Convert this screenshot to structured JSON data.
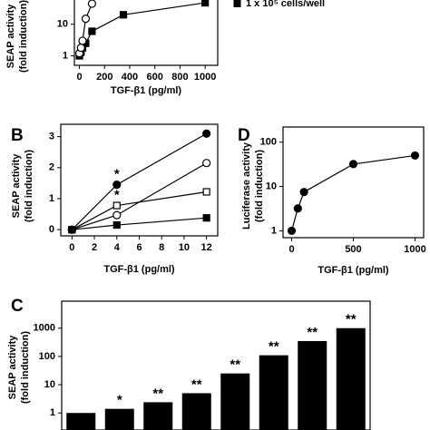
{
  "chart_data": [
    {
      "type": "line",
      "xlim": [
        -40,
        1100
      ],
      "xticks": [
        0,
        200,
        400,
        600,
        800,
        1000
      ],
      "ylim": [
        0.5,
        100
      ],
      "yticks": [
        1,
        10
      ],
      "yscale": "log",
      "x_label": "TGF-β1 (pg/ml)",
      "y_label": [
        "SEAP activity",
        "(fold induction)"
      ],
      "legend": "upper right",
      "series": [
        {
          "name": "1 x 10⁵ cells/well",
          "marker": "filled-square",
          "color": "#000000",
          "x": [
            0,
            12.5,
            25,
            50,
            100,
            350,
            1000
          ],
          "values": [
            1,
            1.3,
            1.8,
            2.5,
            6,
            20,
            48
          ]
        },
        {
          "marker": "open-circle",
          "color": "#000000",
          "x": [
            0,
            12.5,
            25,
            50,
            100
          ],
          "values": [
            1.2,
            1.8,
            3,
            15,
            45
          ]
        }
      ]
    },
    {
      "type": "line",
      "panel_label": "B",
      "xlim": [
        -1,
        13
      ],
      "xticks": [
        0,
        2,
        4,
        6,
        8,
        10,
        12
      ],
      "ylim": [
        -0.2,
        3.4
      ],
      "yticks": [
        0,
        1,
        2,
        3
      ],
      "x_label": "TGF-β1 (pg/ml)",
      "y_label": [
        "SEAP activity",
        "(fold induction)"
      ],
      "series": [
        {
          "marker": "filled-circle",
          "color": "#000000",
          "x": [
            0,
            4,
            12
          ],
          "values": [
            0,
            1.45,
            3.1
          ],
          "annotations": [
            null,
            "*",
            null
          ]
        },
        {
          "marker": "open-circle",
          "color": "#000000",
          "x": [
            0,
            4,
            12
          ],
          "values": [
            0,
            0.47,
            2.15
          ]
        },
        {
          "marker": "open-square",
          "color": "#000000",
          "x": [
            0,
            4,
            12
          ],
          "values": [
            0,
            0.78,
            1.22
          ],
          "annotations": [
            null,
            "*",
            null
          ]
        },
        {
          "marker": "filled-square",
          "color": "#000000",
          "x": [
            0,
            4,
            12
          ],
          "values": [
            0,
            0.15,
            0.38
          ]
        }
      ]
    },
    {
      "type": "line",
      "panel_label": "D",
      "xlim": [
        -70,
        1070
      ],
      "xticks": [
        0,
        500,
        1000
      ],
      "ylim": [
        0.7,
        220
      ],
      "yticks": [
        1,
        10,
        100
      ],
      "yscale": "log",
      "x_label": "TGF-β1 (pg/ml)",
      "y_label": [
        "Luciferase activity",
        "(fold induction)"
      ],
      "series": [
        {
          "marker": "filled-circle",
          "color": "#000000",
          "x": [
            0,
            50,
            100,
            500,
            1000
          ],
          "values": [
            1,
            3.2,
            7.5,
            32,
            50
          ]
        }
      ]
    },
    {
      "type": "bar",
      "panel_label": "C",
      "categories": [
        null,
        null,
        null,
        null,
        null,
        null,
        null,
        null
      ],
      "values": [
        1,
        1.4,
        2.4,
        5,
        25,
        110,
        350,
        1000
      ],
      "annotations": [
        null,
        "*",
        "**",
        "**",
        "**",
        "**",
        "**",
        "**"
      ],
      "color": "#000000",
      "ylim": [
        0.25,
        9000
      ],
      "yticks": [
        1,
        10,
        100,
        1000
      ],
      "yscale": "log",
      "y_label": [
        "SEAP activity",
        "(fold induction)"
      ]
    }
  ]
}
